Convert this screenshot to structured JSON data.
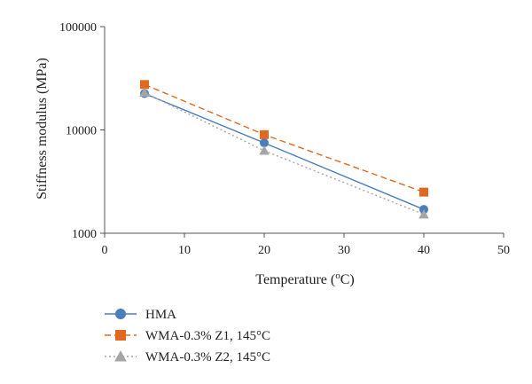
{
  "chart_data": {
    "type": "line",
    "title": "",
    "xlabel": "Temperature (",
    "xlabel_sup": "o",
    "xlabel_suffix": "C)",
    "ylabel": "Stiffness modulus (MPa)",
    "xlim": [
      0,
      50
    ],
    "ylim": [
      1000,
      100000
    ],
    "yscale": "log",
    "grid": false,
    "legend_position": "bottom-left",
    "x_ticks": [
      "0",
      "10",
      "20",
      "30",
      "40",
      "50"
    ],
    "y_ticks": [
      "1000",
      "10000",
      "100000"
    ],
    "x": [
      5,
      20,
      40
    ],
    "series": [
      {
        "name": "HMA",
        "values": [
          22500,
          7500,
          1700
        ],
        "color": "#4a7ebb",
        "marker": "circle",
        "line_style": "solid"
      },
      {
        "name": "WMA-0.3% Z1, 145°C",
        "values": [
          27500,
          9000,
          2500
        ],
        "color": "#e0691f",
        "marker": "square",
        "line_style": "dashed"
      },
      {
        "name": "WMA-0.3% Z2, 145°C",
        "values": [
          23000,
          6300,
          1520
        ],
        "color": "#a5a5a5",
        "marker": "triangle",
        "line_style": "dotted"
      }
    ]
  }
}
